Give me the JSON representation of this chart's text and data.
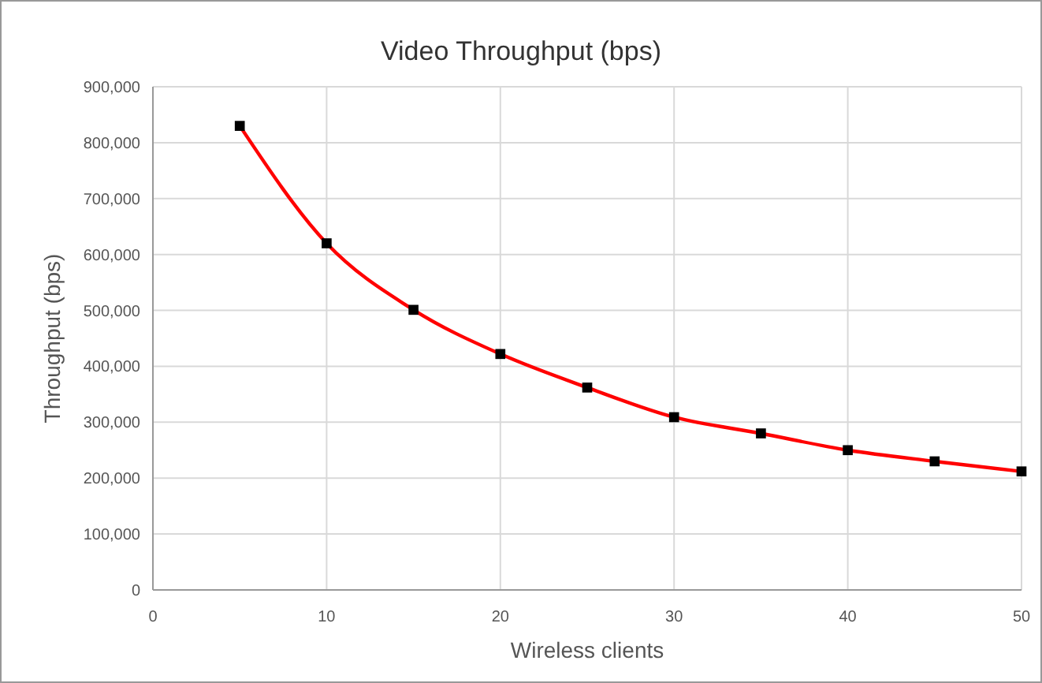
{
  "chart_data": {
    "type": "line",
    "title": "Video Throughput (bps)",
    "xlabel": "Wireless clients",
    "ylabel": "Throughput (bps)",
    "x": [
      5,
      10,
      15,
      20,
      25,
      30,
      35,
      40,
      45,
      50
    ],
    "series": [
      {
        "color": "#ff0000",
        "values": [
          830000,
          620000,
          501000,
          422000,
          362000,
          309000,
          280000,
          250000,
          230000,
          212000
        ]
      }
    ],
    "xlim": [
      0,
      50
    ],
    "xticks": [
      0,
      10,
      20,
      30,
      40,
      50
    ],
    "ylim": [
      0,
      900000
    ],
    "yticks": [
      {
        "value": 0,
        "label": "0"
      },
      {
        "value": 100000,
        "label": "100,000"
      },
      {
        "value": 200000,
        "label": "200,000"
      },
      {
        "value": 300000,
        "label": "300,000"
      },
      {
        "value": 400000,
        "label": "400,000"
      },
      {
        "value": 500000,
        "label": "500,000"
      },
      {
        "value": 600000,
        "label": "600,000"
      },
      {
        "value": 700000,
        "label": "700,000"
      },
      {
        "value": 800000,
        "label": "800,000"
      },
      {
        "value": 900000,
        "label": "900,000"
      }
    ],
    "grid": true,
    "marker": "square",
    "line_style": "solid"
  }
}
